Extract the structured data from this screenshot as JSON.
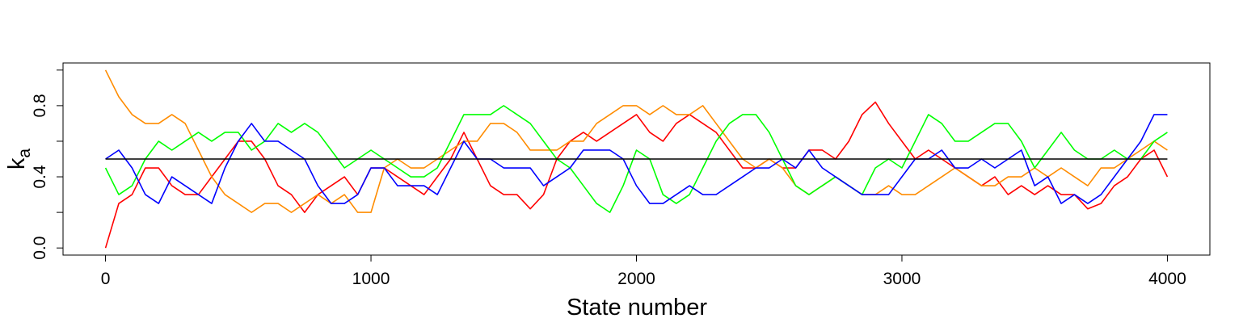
{
  "chart_data": {
    "type": "line",
    "xlabel": "State number",
    "ylabel": "k",
    "ylabel_sub": "a",
    "x": [
      0,
      50,
      100,
      150,
      200,
      250,
      300,
      350,
      400,
      450,
      500,
      550,
      600,
      650,
      700,
      750,
      800,
      850,
      900,
      950,
      1000,
      1050,
      1100,
      1150,
      1200,
      1250,
      1300,
      1350,
      1400,
      1450,
      1500,
      1550,
      1600,
      1650,
      1700,
      1750,
      1800,
      1850,
      1900,
      1950,
      2000,
      2050,
      2100,
      2150,
      2200,
      2250,
      2300,
      2350,
      2400,
      2450,
      2500,
      2550,
      2600,
      2650,
      2700,
      2750,
      2800,
      2850,
      2900,
      2950,
      3000,
      3050,
      3100,
      3150,
      3200,
      3250,
      3300,
      3350,
      3400,
      3450,
      3500,
      3550,
      3600,
      3650,
      3700,
      3750,
      3800,
      3850,
      3900,
      3950,
      4000
    ],
    "series": [
      {
        "color": "#ff0000",
        "values": [
          0,
          0.25,
          0.3,
          0.45,
          0.45,
          0.35,
          0.3,
          0.3,
          0.4,
          0.5,
          0.6,
          0.6,
          0.5,
          0.35,
          0.3,
          0.2,
          0.3,
          0.35,
          0.4,
          0.3,
          0.45,
          0.45,
          0.4,
          0.35,
          0.3,
          0.4,
          0.5,
          0.65,
          0.5,
          0.35,
          0.3,
          0.3,
          0.22,
          0.3,
          0.5,
          0.6,
          0.65,
          0.6,
          0.65,
          0.7,
          0.75,
          0.65,
          0.6,
          0.7,
          0.75,
          0.7,
          0.65,
          0.55,
          0.45,
          0.45,
          0.5,
          0.45,
          0.45,
          0.55,
          0.55,
          0.5,
          0.6,
          0.75,
          0.82,
          0.7,
          0.6,
          0.5,
          0.55,
          0.5,
          0.45,
          0.4,
          0.35,
          0.4,
          0.3,
          0.35,
          0.3,
          0.35,
          0.3,
          0.3,
          0.22,
          0.25,
          0.35,
          0.4,
          0.5,
          0.55,
          0.4
        ]
      },
      {
        "color": "#ff8c00",
        "values": [
          1.0,
          0.85,
          0.75,
          0.7,
          0.7,
          0.75,
          0.7,
          0.55,
          0.4,
          0.3,
          0.25,
          0.2,
          0.25,
          0.25,
          0.2,
          0.25,
          0.3,
          0.25,
          0.3,
          0.2,
          0.2,
          0.45,
          0.5,
          0.45,
          0.45,
          0.5,
          0.55,
          0.6,
          0.6,
          0.7,
          0.7,
          0.65,
          0.55,
          0.55,
          0.55,
          0.6,
          0.6,
          0.7,
          0.75,
          0.8,
          0.8,
          0.75,
          0.8,
          0.75,
          0.75,
          0.8,
          0.7,
          0.6,
          0.5,
          0.45,
          0.5,
          0.45,
          0.35,
          0.3,
          0.35,
          0.4,
          0.35,
          0.3,
          0.3,
          0.35,
          0.3,
          0.3,
          0.35,
          0.4,
          0.45,
          0.4,
          0.35,
          0.35,
          0.4,
          0.4,
          0.45,
          0.4,
          0.45,
          0.4,
          0.35,
          0.45,
          0.45,
          0.5,
          0.55,
          0.6,
          0.55
        ]
      },
      {
        "color": "#00ff00",
        "values": [
          0.45,
          0.3,
          0.35,
          0.5,
          0.6,
          0.55,
          0.6,
          0.65,
          0.6,
          0.65,
          0.65,
          0.55,
          0.6,
          0.7,
          0.65,
          0.7,
          0.65,
          0.55,
          0.45,
          0.5,
          0.55,
          0.5,
          0.45,
          0.4,
          0.4,
          0.45,
          0.6,
          0.75,
          0.75,
          0.75,
          0.8,
          0.75,
          0.7,
          0.6,
          0.5,
          0.45,
          0.35,
          0.25,
          0.2,
          0.35,
          0.55,
          0.5,
          0.3,
          0.25,
          0.3,
          0.45,
          0.6,
          0.7,
          0.75,
          0.75,
          0.65,
          0.5,
          0.35,
          0.3,
          0.35,
          0.4,
          0.35,
          0.3,
          0.45,
          0.5,
          0.45,
          0.6,
          0.75,
          0.7,
          0.6,
          0.6,
          0.65,
          0.7,
          0.7,
          0.6,
          0.45,
          0.55,
          0.65,
          0.55,
          0.5,
          0.5,
          0.55,
          0.5,
          0.5,
          0.6,
          0.65
        ]
      },
      {
        "color": "#0000ff",
        "values": [
          0.5,
          0.55,
          0.45,
          0.3,
          0.25,
          0.4,
          0.35,
          0.3,
          0.25,
          0.45,
          0.6,
          0.7,
          0.6,
          0.6,
          0.55,
          0.5,
          0.35,
          0.25,
          0.25,
          0.3,
          0.45,
          0.45,
          0.35,
          0.35,
          0.35,
          0.3,
          0.45,
          0.6,
          0.5,
          0.5,
          0.45,
          0.45,
          0.45,
          0.35,
          0.4,
          0.45,
          0.55,
          0.55,
          0.55,
          0.5,
          0.35,
          0.25,
          0.25,
          0.3,
          0.35,
          0.3,
          0.3,
          0.35,
          0.4,
          0.45,
          0.45,
          0.5,
          0.45,
          0.55,
          0.45,
          0.4,
          0.35,
          0.3,
          0.3,
          0.3,
          0.4,
          0.5,
          0.5,
          0.55,
          0.45,
          0.45,
          0.5,
          0.45,
          0.5,
          0.55,
          0.35,
          0.4,
          0.25,
          0.3,
          0.25,
          0.3,
          0.4,
          0.5,
          0.6,
          0.75,
          0.75
        ]
      }
    ],
    "hline": 0.5,
    "hline_color": "#000000",
    "xlim": [
      -160,
      4160
    ],
    "ylim": [
      -0.04,
      1.04
    ],
    "xticks": [
      0,
      1000,
      2000,
      3000,
      4000
    ],
    "yticks": [
      {
        "value": 0,
        "label": "0.0"
      },
      {
        "value": 0.2,
        "label": null
      },
      {
        "value": 0.4,
        "label": "0.4"
      },
      {
        "value": 0.6,
        "label": null
      },
      {
        "value": 0.8,
        "label": "0.8"
      },
      {
        "value": 1.0,
        "label": null
      }
    ]
  }
}
